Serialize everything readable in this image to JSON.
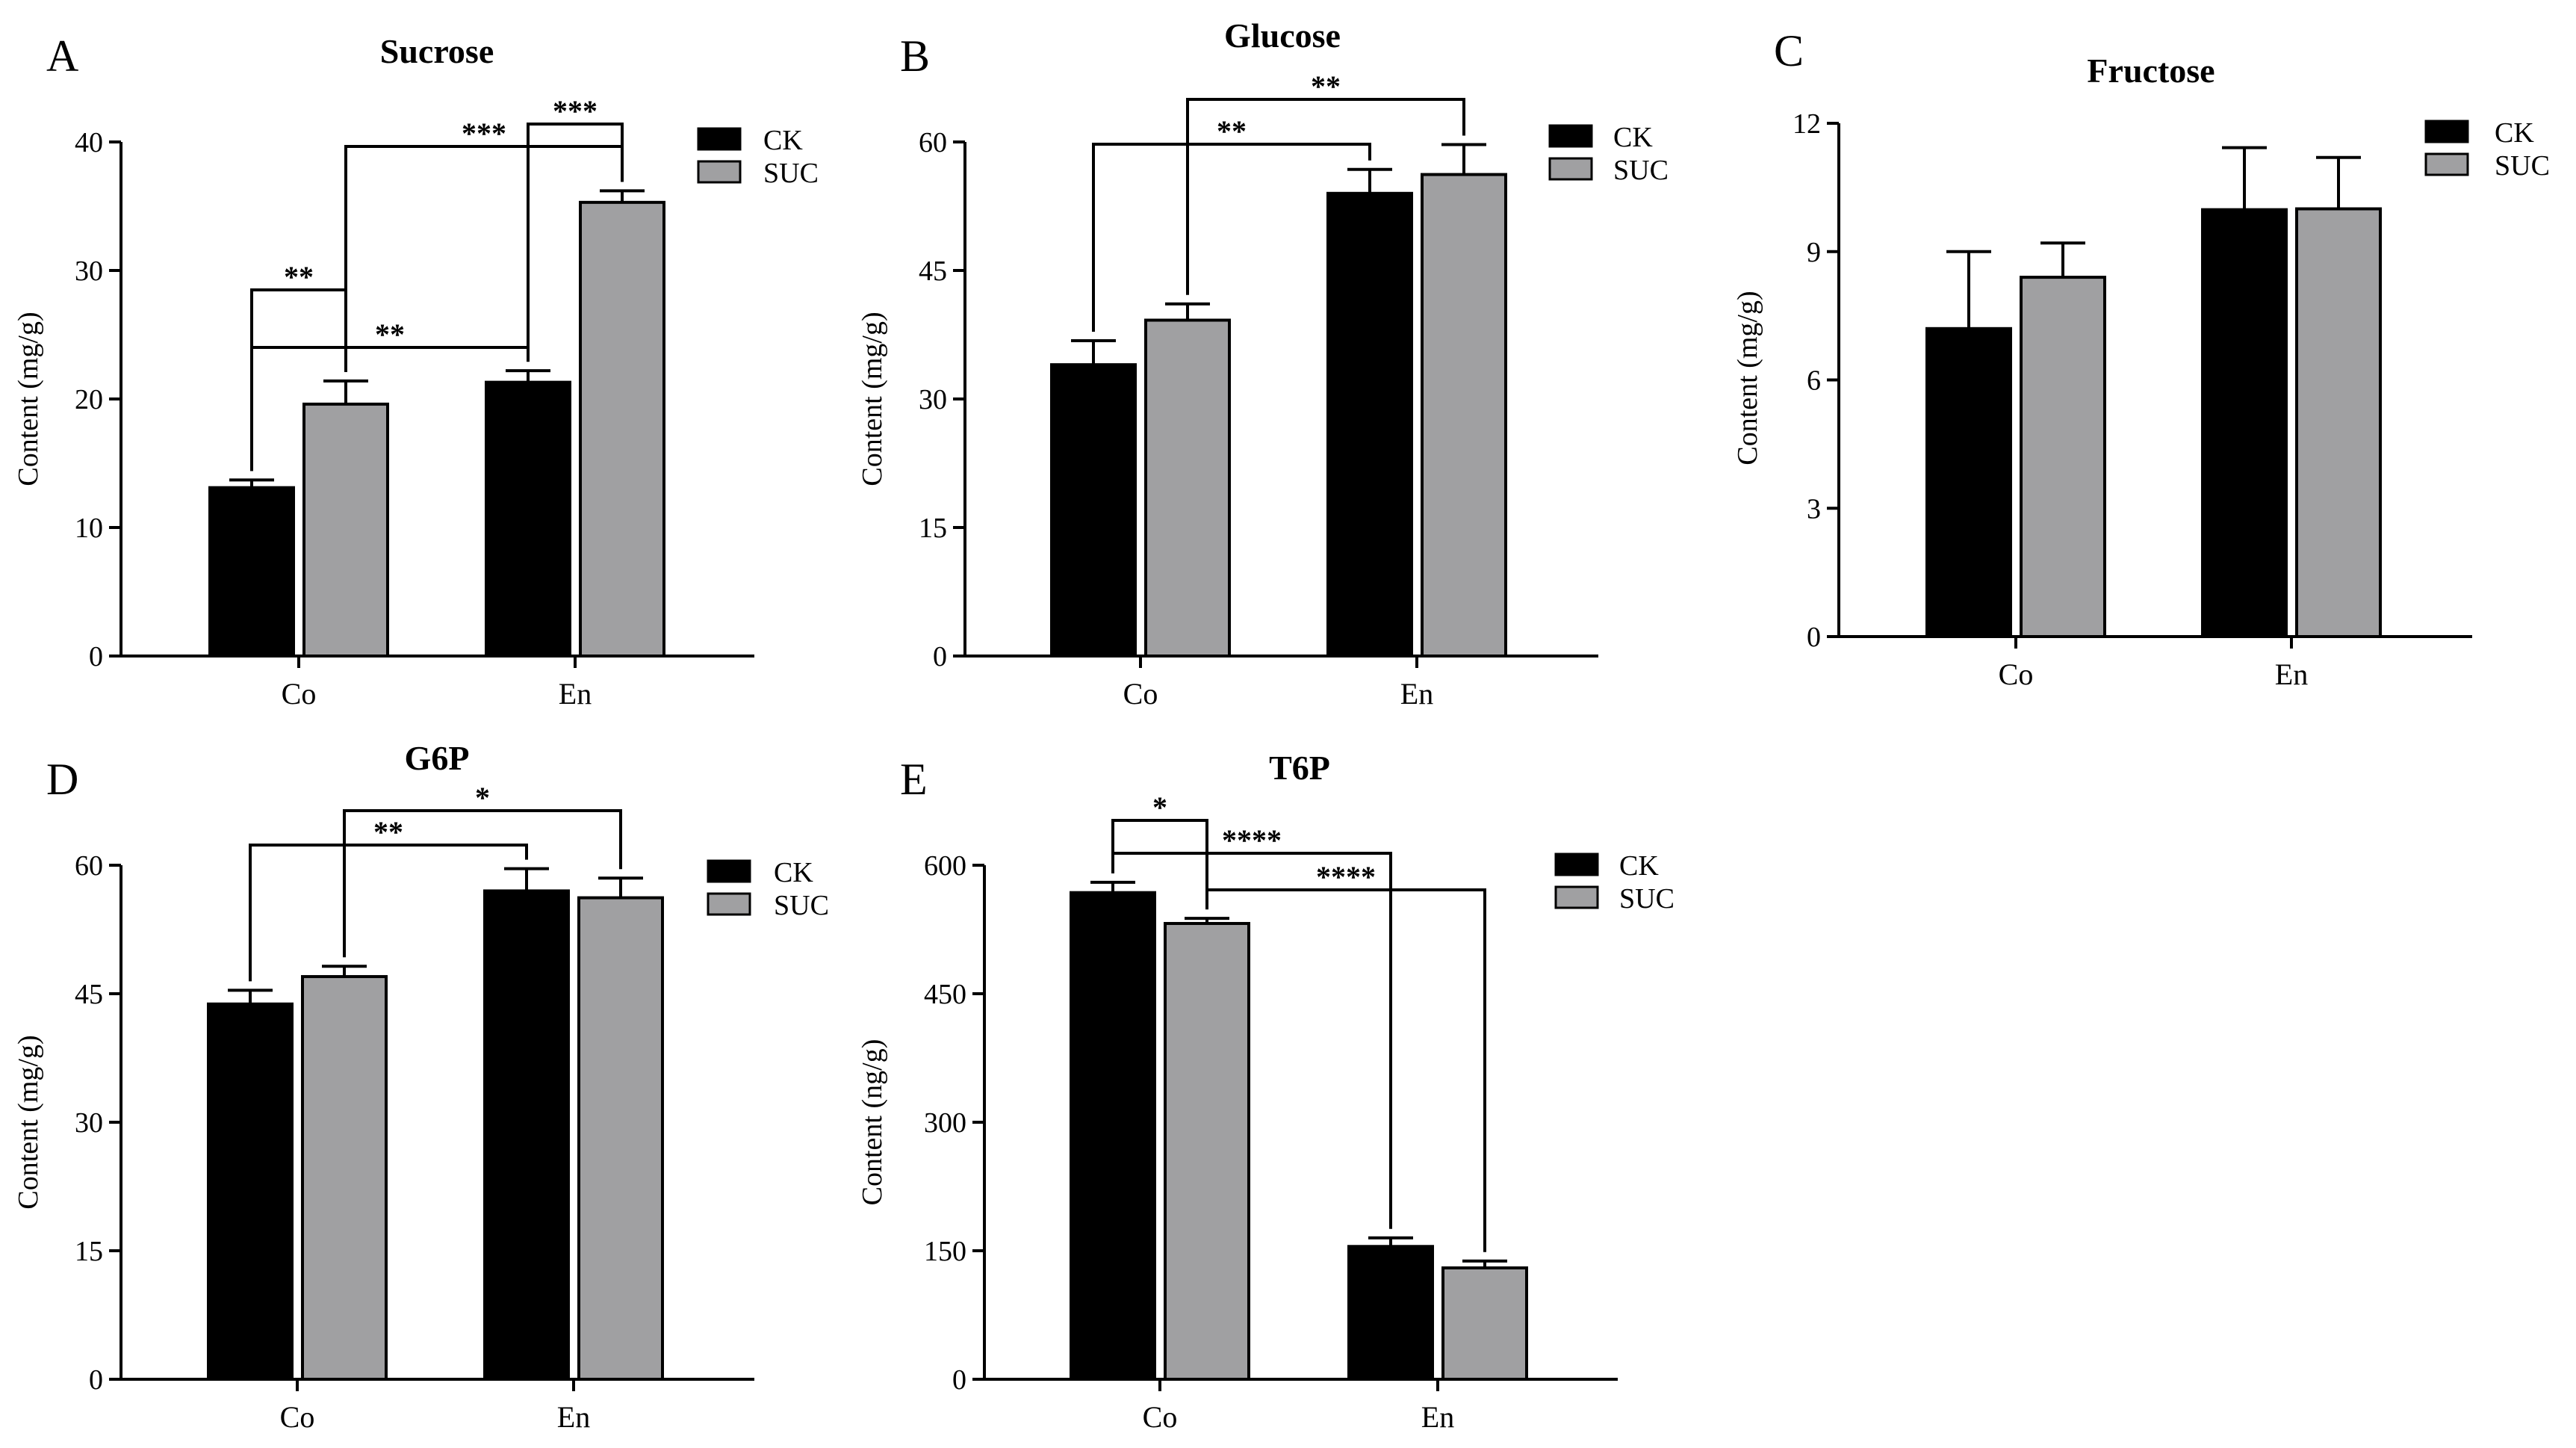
{
  "figure": {
    "legend_labels": [
      "CK",
      "SUC"
    ],
    "colors": {
      "CK": "#000000",
      "SUC": "#a0a0a2",
      "axis": "#000000"
    }
  },
  "chart_data": [
    {
      "panel": "A",
      "type": "bar",
      "title": "Sucrose",
      "xlabel": "",
      "ylabel": "Content (mg/g)",
      "categories": [
        "Co",
        "En"
      ],
      "ylim": [
        0,
        40
      ],
      "yticks": [
        0,
        10,
        20,
        30,
        40
      ],
      "series": [
        {
          "name": "CK",
          "values": [
            13.1,
            21.3
          ],
          "errors": [
            0.6,
            0.9
          ]
        },
        {
          "name": "SUC",
          "values": [
            19.6,
            35.3
          ],
          "errors": [
            1.8,
            0.9
          ]
        }
      ],
      "annotations": [
        {
          "label": "***",
          "from": [
            1,
            0
          ],
          "to": [
            1,
            1
          ]
        },
        {
          "label": "***",
          "from": [
            0,
            1
          ],
          "to": [
            1,
            1
          ]
        },
        {
          "label": "**",
          "from": [
            0,
            0
          ],
          "to": [
            0,
            1
          ]
        },
        {
          "label": "**",
          "from": [
            0,
            0
          ],
          "to": [
            1,
            0
          ]
        }
      ]
    },
    {
      "panel": "B",
      "type": "bar",
      "title": "Glucose",
      "xlabel": "",
      "ylabel": "Content (mg/g)",
      "categories": [
        "Co",
        "En"
      ],
      "ylim": [
        0,
        60
      ],
      "yticks": [
        0,
        15,
        30,
        45,
        60
      ],
      "series": [
        {
          "name": "CK",
          "values": [
            34.0,
            54.0
          ],
          "errors": [
            2.8,
            2.8
          ]
        },
        {
          "name": "SUC",
          "values": [
            39.2,
            56.2
          ],
          "errors": [
            1.9,
            3.5
          ]
        }
      ],
      "annotations": [
        {
          "label": "**",
          "from": [
            0,
            1
          ],
          "to": [
            1,
            1
          ]
        },
        {
          "label": "**",
          "from": [
            0,
            0
          ],
          "to": [
            1,
            0
          ]
        }
      ]
    },
    {
      "panel": "C",
      "type": "bar",
      "title": "Fructose",
      "xlabel": "",
      "ylabel": "Content (mg/g)",
      "categories": [
        "Co",
        "En"
      ],
      "ylim": [
        0,
        12
      ],
      "yticks": [
        0,
        3,
        6,
        9,
        12
      ],
      "series": [
        {
          "name": "CK",
          "values": [
            7.2,
            9.98
          ],
          "errors": [
            1.8,
            1.45
          ]
        },
        {
          "name": "SUC",
          "values": [
            8.4,
            10.0
          ],
          "errors": [
            0.8,
            1.2
          ]
        }
      ],
      "annotations": []
    },
    {
      "panel": "D",
      "type": "bar",
      "title": "G6P",
      "xlabel": "",
      "ylabel": "Content (mg/g)",
      "categories": [
        "Co",
        "En"
      ],
      "ylim": [
        0,
        60
      ],
      "yticks": [
        0,
        15,
        30,
        45,
        60
      ],
      "series": [
        {
          "name": "CK",
          "values": [
            43.8,
            57.0
          ],
          "errors": [
            1.6,
            2.6
          ]
        },
        {
          "name": "SUC",
          "values": [
            47.0,
            56.2
          ],
          "errors": [
            1.2,
            2.3
          ]
        }
      ],
      "annotations": [
        {
          "label": "*",
          "from": [
            0,
            1
          ],
          "to": [
            1,
            1
          ]
        },
        {
          "label": "**",
          "from": [
            0,
            0
          ],
          "to": [
            1,
            0
          ]
        }
      ]
    },
    {
      "panel": "E",
      "type": "bar",
      "title": "T6P",
      "xlabel": "",
      "ylabel": "Content (ng/g)",
      "categories": [
        "Co",
        "En"
      ],
      "ylim": [
        0,
        600
      ],
      "yticks": [
        0,
        150,
        300,
        450,
        600
      ],
      "series": [
        {
          "name": "CK",
          "values": [
            568,
            155
          ],
          "errors": [
            12,
            10
          ]
        },
        {
          "name": "SUC",
          "values": [
            532,
            130
          ],
          "errors": [
            6,
            8
          ]
        }
      ],
      "annotations": [
        {
          "label": "*",
          "from": [
            0,
            0
          ],
          "to": [
            0,
            1
          ]
        },
        {
          "label": "****",
          "from": [
            0,
            0
          ],
          "to": [
            1,
            0
          ]
        },
        {
          "label": "****",
          "from": [
            0,
            1
          ],
          "to": [
            1,
            1
          ]
        }
      ]
    }
  ]
}
